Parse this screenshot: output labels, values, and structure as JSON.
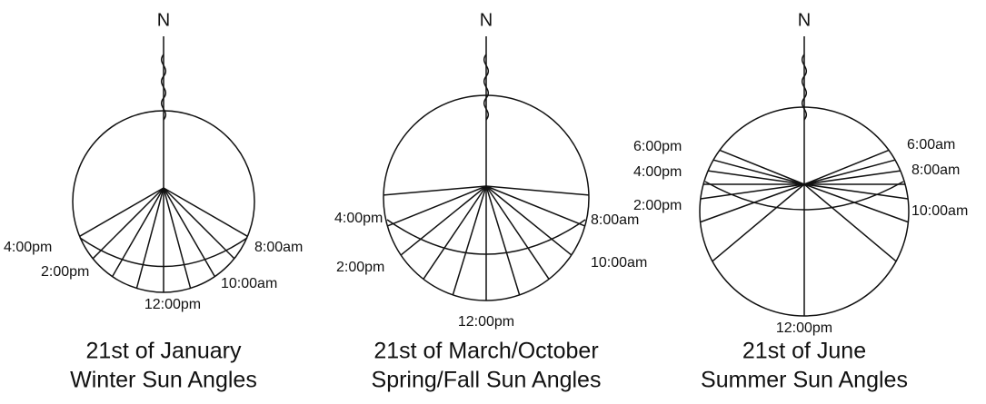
{
  "diagrams": [
    {
      "north": "N",
      "time_labels": [
        "4:00pm",
        "8:00am",
        "2:00pm",
        "10:00am",
        "12:00pm"
      ],
      "caption": [
        "21st of January",
        "Winter Sun Angles"
      ]
    },
    {
      "north": "N",
      "time_labels": [
        "4:00pm",
        "8:00am",
        "2:00pm",
        "10:00am",
        "12:00pm"
      ],
      "caption": [
        "21st of March/October",
        "Spring/Fall Sun Angles"
      ]
    },
    {
      "north": "N",
      "time_labels": [
        "6:00pm",
        "4:00pm",
        "2:00pm",
        "6:00am",
        "8:00am",
        "10:00am",
        "12:00pm"
      ],
      "caption": [
        "21st of June",
        "Summer Sun Angles"
      ]
    }
  ]
}
